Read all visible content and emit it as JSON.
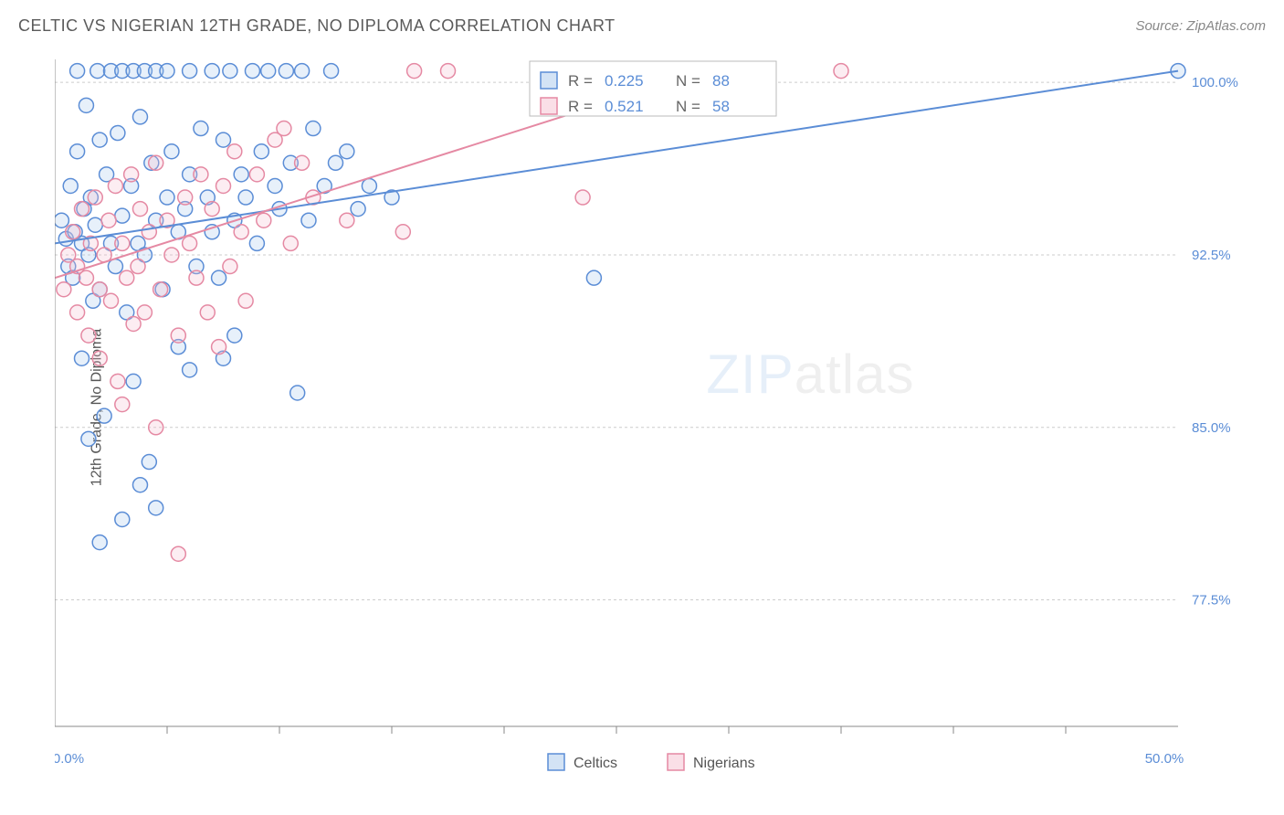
{
  "title": "CELTIC VS NIGERIAN 12TH GRADE, NO DIPLOMA CORRELATION CHART",
  "source": "Source: ZipAtlas.com",
  "ylabel": "12th Grade, No Diploma",
  "watermark_a": "ZIP",
  "watermark_b": "atlas",
  "chart": {
    "type": "scatter",
    "background_color": "#ffffff",
    "grid_color": "#cccccc",
    "axis_color": "#888888",
    "label_color": "#5b8dd6",
    "xlim": [
      0,
      50
    ],
    "ylim": [
      72,
      101
    ],
    "yticks": [
      {
        "val": 77.5,
        "label": "77.5%"
      },
      {
        "val": 85.0,
        "label": "85.0%"
      },
      {
        "val": 92.5,
        "label": "92.5%"
      },
      {
        "val": 100.0,
        "label": "100.0%"
      }
    ],
    "xticks_major": [
      {
        "val": 0.0,
        "label": "0.0%"
      },
      {
        "val": 50.0,
        "label": "50.0%"
      }
    ],
    "xticks_minor": [
      5,
      10,
      15,
      20,
      25,
      30,
      35,
      40,
      45
    ],
    "marker_radius": 8,
    "marker_stroke_width": 1.5,
    "marker_fill_opacity": 0.28,
    "line_width": 2,
    "series": [
      {
        "name": "Celtics",
        "color": "#5b8dd6",
        "fill": "#a8c8ec",
        "R": "0.225",
        "N": "88",
        "trend": {
          "x1": 0,
          "y1": 93.0,
          "x2": 50,
          "y2": 100.5
        },
        "points": [
          [
            0.3,
            94.0
          ],
          [
            0.5,
            93.2
          ],
          [
            0.6,
            92.0
          ],
          [
            0.7,
            95.5
          ],
          [
            0.8,
            91.5
          ],
          [
            0.9,
            93.5
          ],
          [
            1.0,
            97.0
          ],
          [
            1.0,
            100.5
          ],
          [
            1.2,
            88.0
          ],
          [
            1.2,
            93.0
          ],
          [
            1.3,
            94.5
          ],
          [
            1.4,
            99.0
          ],
          [
            1.5,
            92.5
          ],
          [
            1.5,
            84.5
          ],
          [
            1.6,
            95.0
          ],
          [
            1.7,
            90.5
          ],
          [
            1.8,
            93.8
          ],
          [
            1.9,
            100.5
          ],
          [
            2.0,
            97.5
          ],
          [
            2.0,
            91.0
          ],
          [
            2.2,
            85.5
          ],
          [
            2.3,
            96.0
          ],
          [
            2.5,
            100.5
          ],
          [
            2.5,
            93.0
          ],
          [
            2.7,
            92.0
          ],
          [
            2.8,
            97.8
          ],
          [
            3.0,
            100.5
          ],
          [
            3.0,
            94.2
          ],
          [
            3.0,
            81.0
          ],
          [
            3.2,
            90.0
          ],
          [
            3.4,
            95.5
          ],
          [
            3.5,
            100.5
          ],
          [
            3.5,
            87.0
          ],
          [
            3.7,
            93.0
          ],
          [
            3.8,
            98.5
          ],
          [
            4.0,
            100.5
          ],
          [
            4.0,
            92.5
          ],
          [
            4.2,
            83.5
          ],
          [
            4.3,
            96.5
          ],
          [
            4.5,
            94.0
          ],
          [
            4.5,
            100.5
          ],
          [
            4.8,
            91.0
          ],
          [
            5.0,
            95.0
          ],
          [
            5.0,
            100.5
          ],
          [
            5.2,
            97.0
          ],
          [
            5.5,
            93.5
          ],
          [
            5.5,
            88.5
          ],
          [
            5.8,
            94.5
          ],
          [
            6.0,
            100.5
          ],
          [
            6.0,
            96.0
          ],
          [
            6.3,
            92.0
          ],
          [
            6.5,
            98.0
          ],
          [
            6.8,
            95.0
          ],
          [
            7.0,
            100.5
          ],
          [
            7.0,
            93.5
          ],
          [
            7.3,
            91.5
          ],
          [
            7.5,
            97.5
          ],
          [
            7.8,
            100.5
          ],
          [
            8.0,
            94.0
          ],
          [
            8.0,
            89.0
          ],
          [
            8.3,
            96.0
          ],
          [
            8.5,
            95.0
          ],
          [
            8.8,
            100.5
          ],
          [
            9.0,
            93.0
          ],
          [
            9.2,
            97.0
          ],
          [
            9.5,
            100.5
          ],
          [
            9.8,
            95.5
          ],
          [
            10.0,
            94.5
          ],
          [
            10.3,
            100.5
          ],
          [
            10.5,
            96.5
          ],
          [
            10.8,
            86.5
          ],
          [
            11.0,
            100.5
          ],
          [
            11.3,
            94.0
          ],
          [
            11.5,
            98.0
          ],
          [
            12.0,
            95.5
          ],
          [
            12.3,
            100.5
          ],
          [
            12.5,
            96.5
          ],
          [
            13.0,
            97.0
          ],
          [
            13.5,
            94.5
          ],
          [
            14.0,
            95.5
          ],
          [
            15.0,
            95.0
          ],
          [
            24.0,
            91.5
          ],
          [
            50.0,
            100.5
          ],
          [
            3.8,
            82.5
          ],
          [
            4.5,
            81.5
          ],
          [
            2.0,
            80.0
          ],
          [
            6.0,
            87.5
          ],
          [
            7.5,
            88.0
          ]
        ]
      },
      {
        "name": "Nigerians",
        "color": "#e589a3",
        "fill": "#f5c0cf",
        "R": "0.521",
        "N": "58",
        "trend": {
          "x1": 0,
          "y1": 91.5,
          "x2": 29,
          "y2": 100.5
        },
        "points": [
          [
            0.4,
            91.0
          ],
          [
            0.6,
            92.5
          ],
          [
            0.8,
            93.5
          ],
          [
            1.0,
            90.0
          ],
          [
            1.0,
            92.0
          ],
          [
            1.2,
            94.5
          ],
          [
            1.4,
            91.5
          ],
          [
            1.5,
            89.0
          ],
          [
            1.6,
            93.0
          ],
          [
            1.8,
            95.0
          ],
          [
            2.0,
            91.0
          ],
          [
            2.0,
            88.0
          ],
          [
            2.2,
            92.5
          ],
          [
            2.4,
            94.0
          ],
          [
            2.5,
            90.5
          ],
          [
            2.7,
            95.5
          ],
          [
            2.8,
            87.0
          ],
          [
            3.0,
            93.0
          ],
          [
            3.2,
            91.5
          ],
          [
            3.4,
            96.0
          ],
          [
            3.5,
            89.5
          ],
          [
            3.7,
            92.0
          ],
          [
            3.8,
            94.5
          ],
          [
            4.0,
            90.0
          ],
          [
            4.2,
            93.5
          ],
          [
            4.5,
            96.5
          ],
          [
            4.7,
            91.0
          ],
          [
            5.0,
            94.0
          ],
          [
            5.2,
            92.5
          ],
          [
            5.5,
            89.0
          ],
          [
            5.5,
            79.5
          ],
          [
            5.8,
            95.0
          ],
          [
            6.0,
            93.0
          ],
          [
            6.3,
            91.5
          ],
          [
            6.5,
            96.0
          ],
          [
            6.8,
            90.0
          ],
          [
            7.0,
            94.5
          ],
          [
            7.3,
            88.5
          ],
          [
            7.5,
            95.5
          ],
          [
            7.8,
            92.0
          ],
          [
            8.0,
            97.0
          ],
          [
            8.3,
            93.5
          ],
          [
            8.5,
            90.5
          ],
          [
            9.0,
            96.0
          ],
          [
            9.3,
            94.0
          ],
          [
            9.8,
            97.5
          ],
          [
            10.2,
            98.0
          ],
          [
            10.5,
            93.0
          ],
          [
            11.0,
            96.5
          ],
          [
            11.5,
            95.0
          ],
          [
            13.0,
            94.0
          ],
          [
            15.5,
            93.5
          ],
          [
            16.0,
            100.5
          ],
          [
            17.5,
            100.5
          ],
          [
            23.5,
            95.0
          ],
          [
            35.0,
            100.5
          ],
          [
            3.0,
            86.0
          ],
          [
            4.5,
            85.0
          ]
        ]
      }
    ],
    "stats_legend": {
      "r_label": "R =",
      "n_label": "N ="
    },
    "bottom_legend": [
      {
        "name": "Celtics",
        "fill": "#a8c8ec",
        "stroke": "#5b8dd6"
      },
      {
        "name": "Nigerians",
        "fill": "#f5c0cf",
        "stroke": "#e589a3"
      }
    ]
  }
}
